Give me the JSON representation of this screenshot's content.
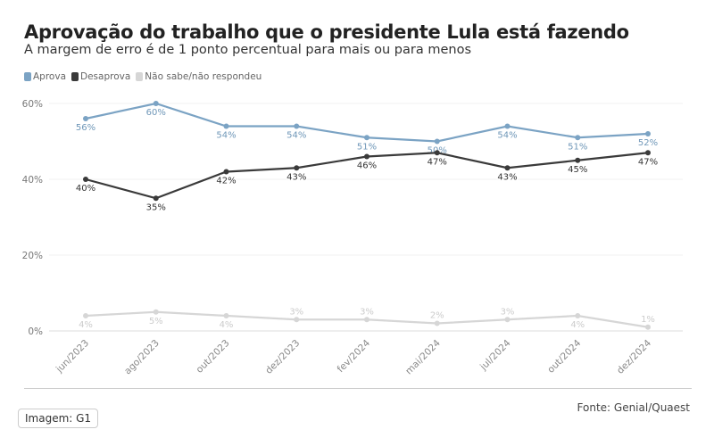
{
  "chart_data": {
    "type": "line",
    "title": "Aprovação do trabalho que o presidente Lula está fazendo",
    "subtitle": "A margem de erro é de 1 ponto percentual para mais ou para menos",
    "categories": [
      "jun/2023",
      "ago/2023",
      "out/2023",
      "dez/2023",
      "fev/2024",
      "mai/2024",
      "jul/2024",
      "out/2024",
      "dez/2024"
    ],
    "yticks": [
      "0%",
      "20%",
      "40%",
      "60%"
    ],
    "ylim": [
      0,
      60
    ],
    "grid": true,
    "legend_position": "top-left",
    "series": [
      {
        "name": "Aprova",
        "color": "#7ba3c4",
        "values": [
          56,
          60,
          54,
          54,
          51,
          50,
          54,
          51,
          52
        ]
      },
      {
        "name": "Desaprova",
        "color": "#3a3a3a",
        "values": [
          40,
          35,
          42,
          43,
          46,
          47,
          43,
          45,
          47
        ]
      },
      {
        "name": "Não sabe/não respondeu",
        "color": "#d6d6d6",
        "values": [
          4,
          5,
          4,
          3,
          3,
          2,
          3,
          4,
          1
        ]
      }
    ]
  },
  "source": "Fonte: Genial/Quaest",
  "credit": "Imagem: G1"
}
